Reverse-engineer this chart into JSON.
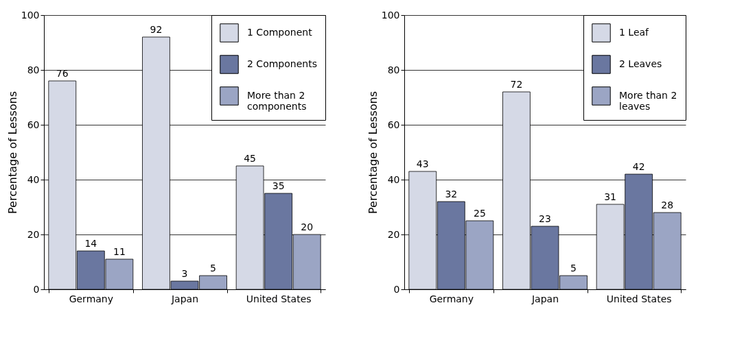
{
  "chart_data": [
    {
      "type": "bar",
      "ylabel": "Percentage of Lessons",
      "categories": [
        "Germany",
        "Japan",
        "United States"
      ],
      "ylim": [
        0,
        100
      ],
      "yticks": [
        0,
        20,
        40,
        60,
        80,
        100
      ],
      "grid": "y",
      "legend": "top right",
      "data_labels": true,
      "series": [
        {
          "name": "1 Component",
          "color": "#d5d9e6",
          "values": [
            76,
            92,
            45
          ]
        },
        {
          "name": "2 Components",
          "color": "#6a77a0",
          "values": [
            14,
            3,
            35
          ]
        },
        {
          "name": "More than 2 components",
          "color": "#9ba5c4",
          "values": [
            11,
            5,
            20
          ]
        }
      ]
    },
    {
      "type": "bar",
      "ylabel": "Percentage of Lessons",
      "categories": [
        "Germany",
        "Japan",
        "United States"
      ],
      "ylim": [
        0,
        100
      ],
      "yticks": [
        0,
        20,
        40,
        60,
        80,
        100
      ],
      "grid": "y",
      "legend": "top right",
      "data_labels": true,
      "series": [
        {
          "name": "1 Leaf",
          "color": "#d5d9e6",
          "values": [
            43,
            72,
            31
          ]
        },
        {
          "name": "2 Leaves",
          "color": "#6a77a0",
          "values": [
            32,
            23,
            42
          ]
        },
        {
          "name": "More than 2 leaves",
          "color": "#9ba5c4",
          "values": [
            25,
            5,
            28
          ]
        }
      ]
    }
  ]
}
